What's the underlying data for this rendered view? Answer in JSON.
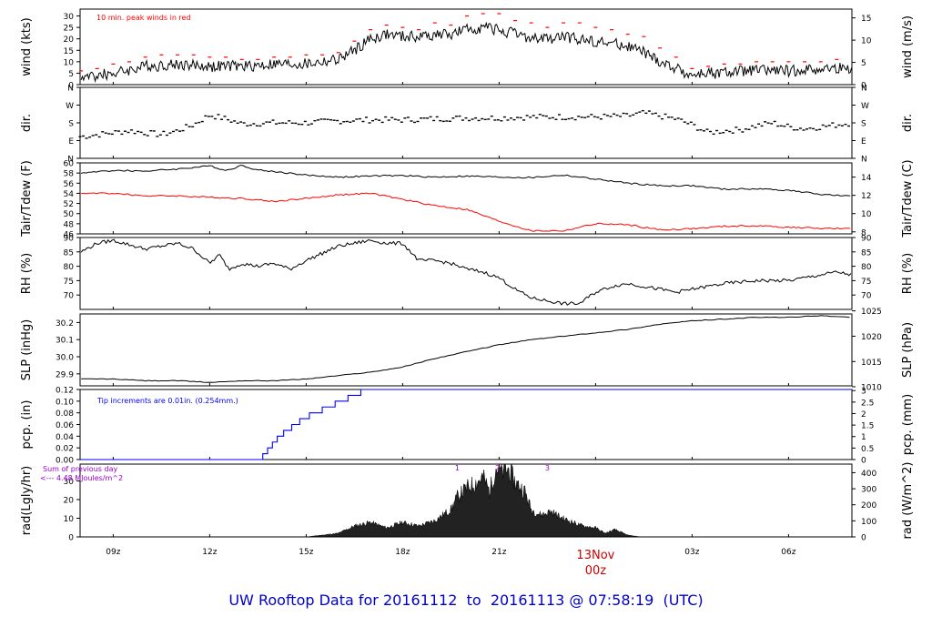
{
  "footer": {
    "title": "UW Rooftop Data for 20161112  to  20161113 @ 07:58:19  (UTC)"
  },
  "x_axis": {
    "ticks": [
      "09z",
      "12z",
      "15z",
      "18z",
      "21z",
      "00z",
      "03z",
      "06z"
    ],
    "tick_hours": [
      9,
      12,
      15,
      18,
      21,
      24,
      27,
      30
    ],
    "start_hour": 7.97,
    "end_hour": 31.97,
    "date_label": "13Nov",
    "date_sublabel": "00z",
    "date_color": "#cc0000"
  },
  "colors": {
    "wind": "#000000",
    "peak": "#ff0000",
    "dew": "#ff0000",
    "pcp": "#0000ff",
    "annotation": "#9900cc",
    "rad_fill": "#222222",
    "footer": "#0000cc"
  },
  "chart_data": [
    {
      "type": "line",
      "ylabel": "wind (kts)",
      "ylabel_right": "wind (m/s)",
      "ylim": [
        0,
        33
      ],
      "yticks": [
        0,
        5,
        10,
        15,
        20,
        25,
        30
      ],
      "yticks_right_values": [
        0,
        5,
        10,
        15
      ],
      "yticks_right_positions_kts": [
        0,
        9.72,
        19.44,
        29.16
      ],
      "annotation": "10 min. peak winds in red",
      "series": [
        {
          "kind": "wind",
          "x": [
            8.0,
            9.0,
            10.0,
            11.0,
            12.0,
            13.0,
            14.0,
            15.0,
            16.0,
            16.5,
            17.0,
            17.5,
            18.0,
            18.5,
            19.0,
            19.5,
            20.0,
            20.5,
            21.0,
            21.5,
            22.0,
            22.5,
            23.0,
            23.5,
            24.0,
            24.5,
            25.0,
            25.5,
            26.0,
            26.5,
            27.0,
            27.5,
            28.0,
            28.5,
            29.0,
            30.0,
            31.0,
            31.97
          ],
          "y": [
            3,
            5,
            8,
            9,
            8,
            8,
            9,
            9,
            11,
            15,
            20,
            22,
            21,
            21,
            22,
            22,
            24,
            25,
            24,
            22,
            20,
            20,
            21,
            20,
            19,
            18,
            17,
            14,
            10,
            7,
            4,
            5,
            5,
            6,
            6,
            6,
            7,
            7
          ]
        },
        {
          "kind": "peak",
          "x": [
            8.0,
            8.5,
            9.0,
            9.5,
            10.0,
            10.5,
            11.0,
            11.5,
            12.0,
            12.5,
            13.0,
            13.5,
            14.0,
            14.5,
            15.0,
            15.5,
            16.0,
            16.5,
            17.0,
            17.5,
            18.0,
            18.5,
            19.0,
            19.5,
            20.0,
            20.5,
            21.0,
            21.5,
            22.0,
            22.5,
            23.0,
            23.5,
            24.0,
            24.5,
            25.0,
            25.5,
            26.0,
            26.5,
            27.0,
            27.5,
            28.0,
            28.5,
            29.0,
            29.5,
            30.0,
            30.5,
            31.0,
            31.5
          ],
          "y": [
            6,
            7,
            9,
            10,
            12,
            13,
            13,
            13,
            12,
            12,
            11,
            11,
            12,
            12,
            13,
            13,
            14,
            19,
            24,
            26,
            25,
            24,
            27,
            26,
            30,
            31,
            31,
            28,
            27,
            25,
            27,
            27,
            25,
            24,
            22,
            21,
            16,
            12,
            7,
            8,
            9,
            9,
            10,
            10,
            10,
            10,
            10,
            11
          ]
        }
      ]
    },
    {
      "type": "scatter",
      "ylabel": "dir.",
      "ylabel_right": "dir.",
      "ylim": [
        0,
        360
      ],
      "ytick_values": [
        0,
        90,
        180,
        270,
        360
      ],
      "ytick_labels": [
        "N",
        "E",
        "S",
        "W",
        "N"
      ],
      "series": [
        {
          "kind": "dir",
          "x": [
            8.0,
            8.5,
            9.0,
            9.5,
            10.0,
            10.5,
            11.0,
            11.5,
            12.0,
            12.5,
            13.0,
            14.0,
            15.0,
            16.0,
            17.0,
            18.0,
            19.0,
            20.0,
            21.0,
            22.0,
            23.0,
            24.0,
            25.0,
            25.5,
            26.0,
            26.5,
            27.0,
            27.5,
            28.0,
            28.5,
            29.0,
            29.5,
            30.0,
            30.5,
            31.0,
            31.5,
            31.97
          ],
          "y": [
            110,
            120,
            130,
            140,
            130,
            120,
            140,
            170,
            220,
            200,
            175,
            180,
            180,
            190,
            195,
            195,
            200,
            205,
            205,
            210,
            210,
            210,
            215,
            230,
            215,
            200,
            170,
            130,
            140,
            145,
            165,
            180,
            160,
            150,
            160,
            170,
            180
          ]
        }
      ]
    },
    {
      "type": "line",
      "ylabel": "Tair/Tdew (F)",
      "ylabel_right": "Tair/Tdew (C)",
      "ylim": [
        46,
        60
      ],
      "yticks": [
        46,
        48,
        50,
        52,
        54,
        56,
        58,
        60
      ],
      "yticks_right_values": [
        8,
        10,
        12,
        14
      ],
      "yticks_right_positions_f": [
        46.4,
        50.0,
        53.6,
        57.2
      ],
      "series": [
        {
          "kind": "tair",
          "x": [
            8.0,
            9.0,
            10.0,
            11.0,
            12.0,
            12.5,
            13.0,
            13.5,
            14.0,
            15.0,
            16.0,
            17.0,
            18.0,
            19.0,
            20.0,
            21.0,
            22.0,
            23.0,
            24.0,
            25.0,
            26.0,
            27.0,
            28.0,
            29.0,
            30.0,
            31.0,
            31.97
          ],
          "y": [
            58,
            58.5,
            58.4,
            58.8,
            59.4,
            58.5,
            59.5,
            58.6,
            58.3,
            57.6,
            57.2,
            57.4,
            57.5,
            57.2,
            57.4,
            57.2,
            57.1,
            57.6,
            56.8,
            56.0,
            55.5,
            55.5,
            54.8,
            54.9,
            54.6,
            53.8,
            53.4
          ]
        },
        {
          "kind": "tdew",
          "x": [
            8.0,
            9.0,
            10.0,
            11.0,
            12.0,
            13.0,
            14.0,
            15.0,
            16.0,
            17.0,
            18.0,
            19.0,
            20.0,
            21.0,
            22.0,
            23.0,
            24.0,
            25.0,
            26.0,
            27.0,
            28.0,
            29.0,
            30.0,
            31.0,
            31.97
          ],
          "y": [
            54,
            54,
            53.5,
            53.5,
            53.2,
            53,
            52.4,
            53,
            53.7,
            54,
            52.8,
            51.6,
            50.8,
            48.5,
            46.6,
            46.6,
            48,
            47.8,
            46.8,
            47,
            47.5,
            47.6,
            47.3,
            47.1,
            47
          ]
        }
      ]
    },
    {
      "type": "line",
      "ylabel": "RH (%)",
      "ylabel_right": "RH (%)",
      "ylim": [
        65,
        90
      ],
      "yticks": [
        70,
        75,
        80,
        85,
        90
      ],
      "series": [
        {
          "kind": "rh",
          "x": [
            8.0,
            8.5,
            9.0,
            10.0,
            11.0,
            11.5,
            12.0,
            12.3,
            12.6,
            13.0,
            13.5,
            14.0,
            14.5,
            15.0,
            16.0,
            17.0,
            17.5,
            18.0,
            18.5,
            19.0,
            19.5,
            20.0,
            20.5,
            21.0,
            21.5,
            22.0,
            22.5,
            23.0,
            23.5,
            24.0,
            24.5,
            25.0,
            25.5,
            26.0,
            26.5,
            27.0,
            28.0,
            29.0,
            30.0,
            31.0,
            31.5,
            31.97
          ],
          "y": [
            85,
            88,
            89,
            86,
            88,
            86,
            81,
            84,
            79,
            81,
            80,
            81,
            79,
            82,
            87,
            89,
            88,
            88,
            82,
            82,
            81,
            79,
            78,
            76,
            72,
            69,
            68,
            67,
            67,
            71,
            73,
            74,
            73,
            72,
            71,
            72,
            74,
            75,
            75,
            77,
            78,
            77
          ]
        }
      ]
    },
    {
      "type": "line",
      "ylabel": "SLP (inHg)",
      "ylabel_right": "SLP (hPa)",
      "ylim": [
        29.83,
        30.25
      ],
      "yticks": [
        29.9,
        30.0,
        30.1,
        30.2
      ],
      "yticks_right_values": [
        1010,
        1015,
        1020,
        1025
      ],
      "yticks_right_positions_inhg": [
        29.825,
        29.972,
        30.12,
        30.268
      ],
      "series": [
        {
          "kind": "slp",
          "x": [
            8.0,
            9.0,
            10.0,
            11.0,
            12.0,
            13.0,
            14.0,
            15.0,
            16.0,
            17.0,
            18.0,
            19.0,
            20.0,
            21.0,
            22.0,
            23.0,
            24.0,
            25.0,
            26.0,
            27.0,
            28.0,
            29.0,
            30.0,
            31.0,
            31.97
          ],
          "y": [
            29.87,
            29.87,
            29.86,
            29.86,
            29.85,
            29.86,
            29.86,
            29.87,
            29.89,
            29.91,
            29.94,
            29.99,
            30.03,
            30.07,
            30.1,
            30.12,
            30.14,
            30.16,
            30.19,
            30.21,
            30.22,
            30.23,
            30.23,
            30.24,
            30.23
          ]
        }
      ]
    },
    {
      "type": "line",
      "ylabel": "pcp. (in)",
      "ylabel_right": "pcp. (mm)",
      "ylim": [
        0,
        0.12
      ],
      "yticks": [
        0.0,
        0.02,
        0.04,
        0.06,
        0.08,
        0.1,
        0.12
      ],
      "yticks_right_values": [
        0,
        0.5,
        1,
        1.5,
        2,
        2.5,
        3
      ],
      "yticks_right_labels": [
        "0",
        "0.5",
        "1",
        "1.5",
        "2",
        "2.5",
        "3"
      ],
      "yticks_right_positions_in": [
        0,
        0.01969,
        0.03937,
        0.05906,
        0.07874,
        0.09843,
        0.11811
      ],
      "annotation": "Tip increments are 0.01in. (0.254mm.)",
      "series": [
        {
          "kind": "pcp",
          "x": [
            8.0,
            13.65,
            13.8,
            13.95,
            14.1,
            14.3,
            14.55,
            14.8,
            15.1,
            15.5,
            15.9,
            16.3,
            16.7,
            17.0,
            17.35,
            17.5,
            31.97
          ],
          "y": [
            0.0,
            0.01,
            0.02,
            0.03,
            0.04,
            0.05,
            0.06,
            0.07,
            0.08,
            0.09,
            0.1,
            0.11,
            0.12,
            0.12,
            0.12,
            0.12,
            0.12
          ]
        }
      ]
    },
    {
      "type": "area",
      "ylabel": "rad(Lgly/hr)",
      "ylabel_right": "rad (W/m^2)",
      "ylim": [
        0,
        39
      ],
      "yticks": [
        0,
        10,
        20,
        30
      ],
      "yticks_right_values": [
        0,
        100,
        200,
        300,
        400
      ],
      "yticks_right_positions_lgly": [
        0,
        8.6,
        17.2,
        25.8,
        34.4
      ],
      "annotation_line1": "Sum of previous day",
      "annotation_line2": "<--- 4.48 MJoules/m^2",
      "top_markers": [
        {
          "label": "1",
          "hour": 19.7
        },
        {
          "label": "2",
          "hour": 20.95
        },
        {
          "label": "3",
          "hour": 22.5
        }
      ],
      "series": [
        {
          "kind": "rad",
          "x": [
            15.0,
            15.5,
            16.0,
            16.5,
            17.0,
            17.5,
            18.0,
            18.5,
            19.0,
            19.5,
            19.7,
            20.0,
            20.3,
            20.5,
            20.7,
            20.9,
            21.1,
            21.3,
            21.5,
            21.8,
            22.0,
            22.3,
            22.6,
            23.0,
            23.3,
            23.6,
            24.0,
            24.3,
            24.6,
            25.0,
            25.4
          ],
          "y": [
            0,
            1,
            2,
            6,
            8,
            5,
            8,
            6,
            9,
            15,
            22,
            27,
            30,
            33,
            25,
            38,
            36,
            37,
            30,
            25,
            15,
            12,
            14,
            10,
            8,
            6,
            5,
            2,
            4,
            1,
            0
          ]
        }
      ]
    }
  ]
}
